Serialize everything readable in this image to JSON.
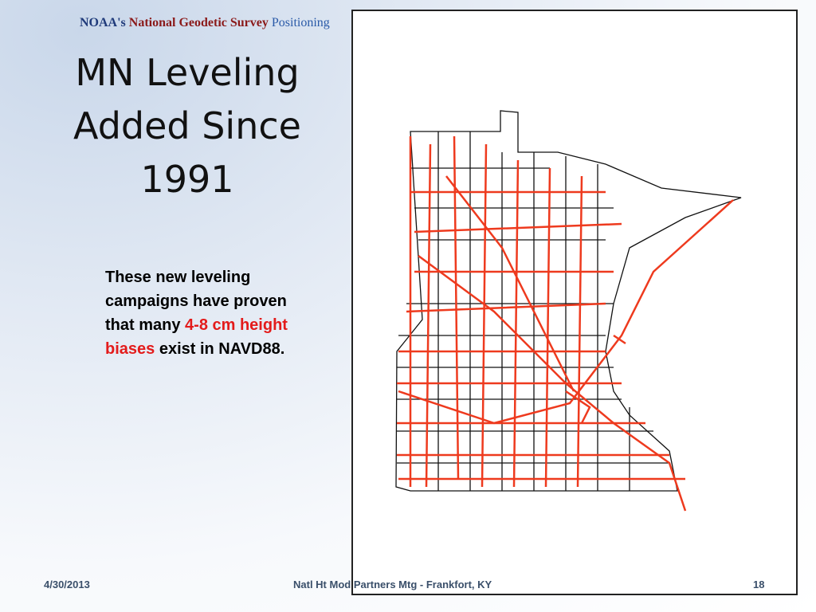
{
  "header": {
    "agency": "NOAA's",
    "survey": "National Geodetic Survey",
    "program": "Positioning"
  },
  "title": {
    "lines": [
      "MN Leveling",
      "Added Since",
      "1991"
    ]
  },
  "body": {
    "before": "These new leveling campaigns have proven that many",
    "highlight": "4-8 cm height biases",
    "after": "exist in NAVD88."
  },
  "footer": {
    "date": "4/30/2013",
    "event": "Natl Ht Mod Partners Mtg - Frankfort, KY",
    "page": "18"
  }
}
